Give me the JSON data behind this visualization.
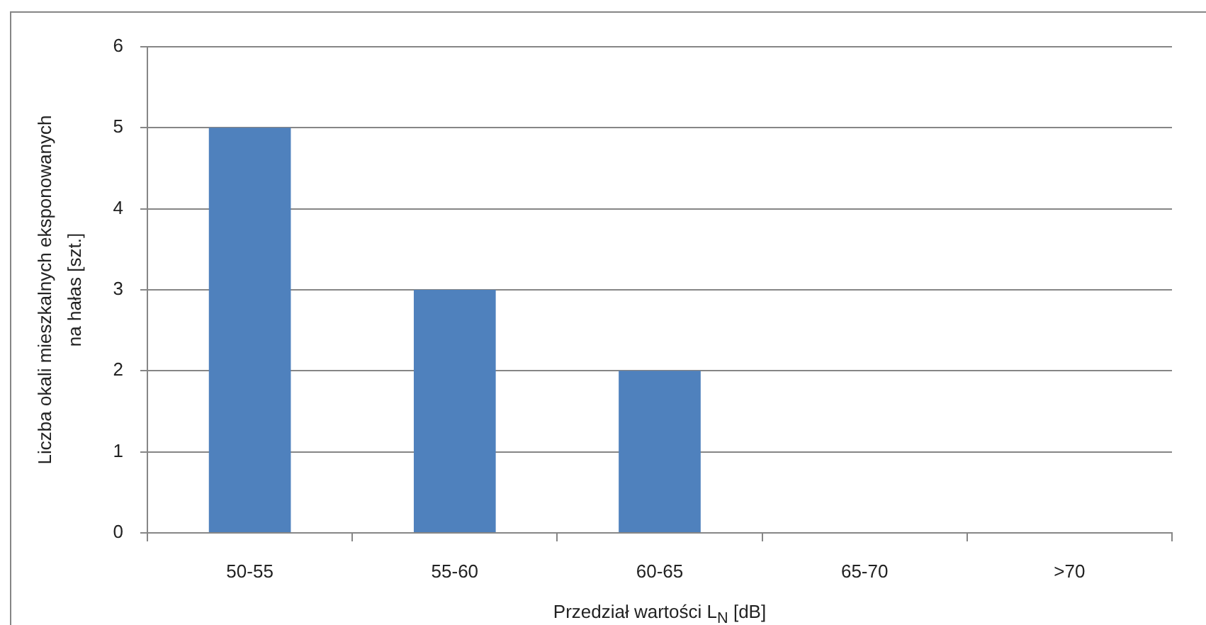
{
  "chart_data": {
    "type": "bar",
    "categories": [
      "50-55",
      "55-60",
      "60-65",
      "65-70",
      ">70"
    ],
    "values": [
      5,
      3,
      2,
      0,
      0
    ],
    "color": "#4f81bd",
    "xlabel": "Przedział wartości L$_{N}$ [dB]",
    "ylabel": "Liczba okali mieszkalnych eksponowanych na hałas [szt.]",
    "ylim": [
      0,
      6
    ],
    "yticks": [
      0,
      1,
      2,
      3,
      4,
      5,
      6
    ],
    "grid": "y",
    "legend": false
  }
}
